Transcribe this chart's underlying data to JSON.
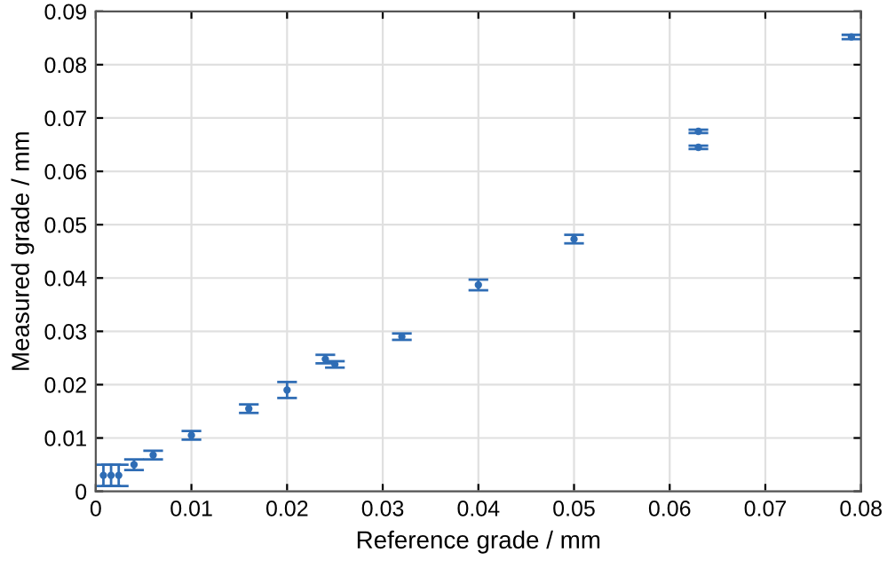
{
  "chart_data": {
    "type": "scatter",
    "xlabel": "Reference grade / mm",
    "ylabel": "Measured grade / mm",
    "x": [
      0.0008,
      0.0016,
      0.0024,
      0.004,
      0.006,
      0.01,
      0.016,
      0.02,
      0.024,
      0.025,
      0.032,
      0.04,
      0.05,
      0.063,
      0.063,
      0.079
    ],
    "series": [
      {
        "color": "#2f6db5",
        "values": [
          0.003,
          0.003,
          0.003,
          0.005,
          0.0068,
          0.0105,
          0.0155,
          0.019,
          0.0248,
          0.0238,
          0.029,
          0.0387,
          0.0473,
          0.0675,
          0.0645,
          0.0852
        ],
        "errors": [
          0.002,
          0.002,
          0.002,
          0.001,
          0.0008,
          0.0008,
          0.0008,
          0.0015,
          0.0008,
          0.0006,
          0.0006,
          0.001,
          0.0008,
          0.0003,
          0.0003,
          0.0004
        ]
      }
    ],
    "xlim": [
      0,
      0.08
    ],
    "xticks": [
      0,
      0.01,
      0.02,
      0.03,
      0.04,
      0.05,
      0.06,
      0.07,
      0.08
    ],
    "ylim": [
      0,
      0.09
    ],
    "yticks": [
      0,
      0.01,
      0.02,
      0.03,
      0.04,
      0.05,
      0.06,
      0.07,
      0.08,
      0.09
    ],
    "grid": true,
    "marker": "circle"
  }
}
